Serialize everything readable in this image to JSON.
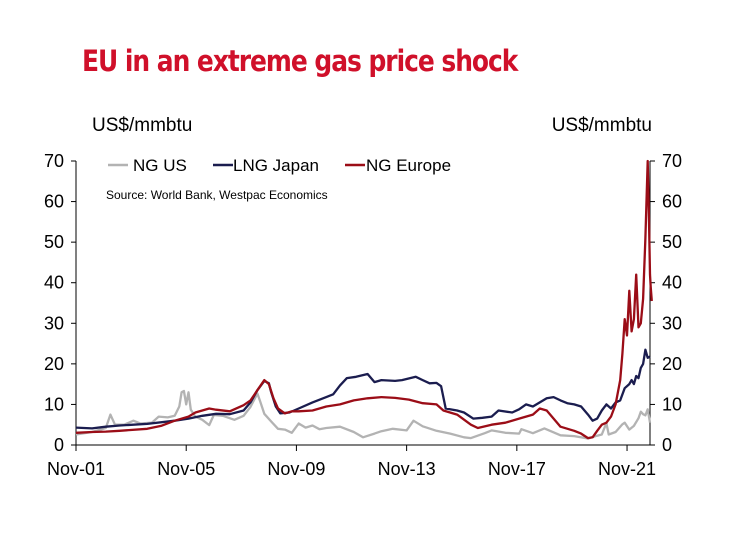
{
  "title": "EU in an extreme gas price shock",
  "chart_data": {
    "type": "line",
    "ylabel_left": "US$/mmbtu",
    "ylabel_right": "US$/mmbtu",
    "source": "Source: World Bank, Westpac Economics",
    "ylim": [
      0,
      70
    ],
    "yticks": [
      "0",
      "10",
      "20",
      "30",
      "40",
      "50",
      "60",
      "70"
    ],
    "xticks": [
      "Nov-01",
      "Nov-05",
      "Nov-09",
      "Nov-13",
      "Nov-17",
      "Nov-21"
    ],
    "xlim": [
      "2001-11",
      "2022-09"
    ],
    "grid": false,
    "legend_position": "top-left",
    "series": [
      {
        "name": "NG US",
        "color": "#b3b3b3",
        "points": [
          [
            "2001-11",
            2.6
          ],
          [
            "2002-06",
            3.2
          ],
          [
            "2002-12",
            4.2
          ],
          [
            "2003-02",
            7.5
          ],
          [
            "2003-04",
            5.0
          ],
          [
            "2003-08",
            5.0
          ],
          [
            "2003-12",
            6.0
          ],
          [
            "2004-03",
            5.3
          ],
          [
            "2004-08",
            5.5
          ],
          [
            "2004-11",
            7.0
          ],
          [
            "2005-03",
            6.8
          ],
          [
            "2005-06",
            7.2
          ],
          [
            "2005-08",
            9.5
          ],
          [
            "2005-09",
            13.0
          ],
          [
            "2005-10",
            13.3
          ],
          [
            "2005-11",
            10.0
          ],
          [
            "2005-12",
            13.0
          ],
          [
            "2006-01",
            8.7
          ],
          [
            "2006-03",
            7.0
          ],
          [
            "2006-06",
            6.2
          ],
          [
            "2006-09",
            4.9
          ],
          [
            "2006-11",
            7.4
          ],
          [
            "2007-03",
            7.2
          ],
          [
            "2007-08",
            6.2
          ],
          [
            "2007-12",
            7.2
          ],
          [
            "2008-03",
            9.4
          ],
          [
            "2008-06",
            12.7
          ],
          [
            "2008-07",
            11.1
          ],
          [
            "2008-09",
            7.7
          ],
          [
            "2008-12",
            5.8
          ],
          [
            "2009-03",
            4.0
          ],
          [
            "2009-06",
            3.8
          ],
          [
            "2009-09",
            3.0
          ],
          [
            "2009-12",
            5.3
          ],
          [
            "2010-03",
            4.3
          ],
          [
            "2010-06",
            4.8
          ],
          [
            "2010-09",
            3.9
          ],
          [
            "2010-12",
            4.2
          ],
          [
            "2011-06",
            4.5
          ],
          [
            "2011-12",
            3.2
          ],
          [
            "2012-04",
            1.9
          ],
          [
            "2012-09",
            2.8
          ],
          [
            "2012-12",
            3.4
          ],
          [
            "2013-05",
            4.0
          ],
          [
            "2013-11",
            3.6
          ],
          [
            "2014-02",
            6.0
          ],
          [
            "2014-06",
            4.6
          ],
          [
            "2014-12",
            3.5
          ],
          [
            "2015-06",
            2.8
          ],
          [
            "2015-12",
            1.9
          ],
          [
            "2016-03",
            1.7
          ],
          [
            "2016-09",
            2.9
          ],
          [
            "2016-12",
            3.6
          ],
          [
            "2017-06",
            3.0
          ],
          [
            "2017-12",
            2.8
          ],
          [
            "2018-01",
            3.9
          ],
          [
            "2018-06",
            2.9
          ],
          [
            "2018-11",
            4.1
          ],
          [
            "2019-06",
            2.4
          ],
          [
            "2019-12",
            2.2
          ],
          [
            "2020-06",
            1.6
          ],
          [
            "2020-10",
            2.3
          ],
          [
            "2020-12",
            2.6
          ],
          [
            "2021-02",
            5.4
          ],
          [
            "2021-03",
            2.6
          ],
          [
            "2021-06",
            3.2
          ],
          [
            "2021-09",
            5.1
          ],
          [
            "2021-10",
            5.5
          ],
          [
            "2021-12",
            3.8
          ],
          [
            "2022-02",
            4.7
          ],
          [
            "2022-04",
            6.6
          ],
          [
            "2022-05",
            8.2
          ],
          [
            "2022-06",
            7.6
          ],
          [
            "2022-07",
            7.3
          ],
          [
            "2022-08",
            8.8
          ],
          [
            "2022-09",
            5.5
          ]
        ]
      },
      {
        "name": "LNG Japan",
        "color": "#1b1d4f",
        "points": [
          [
            "2001-11",
            4.3
          ],
          [
            "2002-06",
            4.1
          ],
          [
            "2002-12",
            4.5
          ],
          [
            "2003-06",
            4.8
          ],
          [
            "2004-06",
            5.2
          ],
          [
            "2005-06",
            6.0
          ],
          [
            "2005-12",
            6.5
          ],
          [
            "2006-06",
            7.2
          ],
          [
            "2006-12",
            7.7
          ],
          [
            "2007-06",
            7.6
          ],
          [
            "2007-12",
            8.5
          ],
          [
            "2008-03",
            10.5
          ],
          [
            "2008-06",
            13.5
          ],
          [
            "2008-09",
            15.8
          ],
          [
            "2008-11",
            15.2
          ],
          [
            "2008-12",
            13.0
          ],
          [
            "2009-02",
            9.5
          ],
          [
            "2009-04",
            7.8
          ],
          [
            "2009-08",
            8.0
          ],
          [
            "2009-12",
            9.0
          ],
          [
            "2010-06",
            10.5
          ],
          [
            "2010-12",
            11.8
          ],
          [
            "2011-03",
            12.5
          ],
          [
            "2011-06",
            14.7
          ],
          [
            "2011-09",
            16.5
          ],
          [
            "2012-01",
            16.8
          ],
          [
            "2012-06",
            17.5
          ],
          [
            "2012-09",
            15.5
          ],
          [
            "2012-12",
            16.0
          ],
          [
            "2013-06",
            15.8
          ],
          [
            "2013-09",
            16.0
          ],
          [
            "2014-03",
            16.8
          ],
          [
            "2014-06",
            16.0
          ],
          [
            "2014-09",
            15.2
          ],
          [
            "2014-12",
            15.3
          ],
          [
            "2015-02",
            14.5
          ],
          [
            "2015-04",
            9.0
          ],
          [
            "2015-09",
            8.5
          ],
          [
            "2015-12",
            8.0
          ],
          [
            "2016-04",
            6.5
          ],
          [
            "2016-08",
            6.7
          ],
          [
            "2016-12",
            7.0
          ],
          [
            "2017-03",
            8.5
          ],
          [
            "2017-09",
            8.0
          ],
          [
            "2017-12",
            8.8
          ],
          [
            "2018-03",
            10.0
          ],
          [
            "2018-06",
            9.5
          ],
          [
            "2018-12",
            11.5
          ],
          [
            "2019-03",
            11.8
          ],
          [
            "2019-06",
            11.0
          ],
          [
            "2019-09",
            10.3
          ],
          [
            "2019-12",
            10.0
          ],
          [
            "2020-03",
            9.5
          ],
          [
            "2020-06",
            7.5
          ],
          [
            "2020-08",
            6.0
          ],
          [
            "2020-10",
            6.5
          ],
          [
            "2020-12",
            8.5
          ],
          [
            "2021-02",
            10.0
          ],
          [
            "2021-04",
            9.0
          ],
          [
            "2021-06",
            10.5
          ],
          [
            "2021-08",
            11.0
          ],
          [
            "2021-10",
            14.0
          ],
          [
            "2021-12",
            15.0
          ],
          [
            "2022-01",
            16.0
          ],
          [
            "2022-02",
            15.0
          ],
          [
            "2022-03",
            17.0
          ],
          [
            "2022-04",
            16.5
          ],
          [
            "2022-05",
            19.0
          ],
          [
            "2022-06",
            20.0
          ],
          [
            "2022-07",
            23.5
          ],
          [
            "2022-08",
            21.5
          ],
          [
            "2022-09",
            21.8
          ]
        ]
      },
      {
        "name": "NG Europe",
        "color": "#9b0d17",
        "points": [
          [
            "2001-11",
            3.0
          ],
          [
            "2002-06",
            3.2
          ],
          [
            "2002-12",
            3.3
          ],
          [
            "2003-06",
            3.5
          ],
          [
            "2004-06",
            4.0
          ],
          [
            "2004-12",
            4.7
          ],
          [
            "2005-06",
            6.0
          ],
          [
            "2005-12",
            7.0
          ],
          [
            "2006-03",
            8.0
          ],
          [
            "2006-06",
            8.5
          ],
          [
            "2006-09",
            9.0
          ],
          [
            "2006-12",
            8.7
          ],
          [
            "2007-06",
            8.3
          ],
          [
            "2007-12",
            9.8
          ],
          [
            "2008-03",
            11.0
          ],
          [
            "2008-06",
            13.5
          ],
          [
            "2008-09",
            16.0
          ],
          [
            "2008-11",
            15.0
          ],
          [
            "2009-01",
            11.5
          ],
          [
            "2009-03",
            9.0
          ],
          [
            "2009-06",
            7.8
          ],
          [
            "2009-09",
            8.3
          ],
          [
            "2009-12",
            8.3
          ],
          [
            "2010-06",
            8.5
          ],
          [
            "2010-12",
            9.5
          ],
          [
            "2011-06",
            10.0
          ],
          [
            "2011-12",
            11.0
          ],
          [
            "2012-06",
            11.5
          ],
          [
            "2012-12",
            11.8
          ],
          [
            "2013-06",
            11.6
          ],
          [
            "2013-12",
            11.2
          ],
          [
            "2014-06",
            10.3
          ],
          [
            "2014-12",
            10.0
          ],
          [
            "2015-03",
            8.5
          ],
          [
            "2015-09",
            7.5
          ],
          [
            "2016-03",
            5.0
          ],
          [
            "2016-06",
            4.2
          ],
          [
            "2016-12",
            5.0
          ],
          [
            "2017-06",
            5.5
          ],
          [
            "2017-12",
            6.5
          ],
          [
            "2018-06",
            7.5
          ],
          [
            "2018-09",
            9.0
          ],
          [
            "2018-12",
            8.5
          ],
          [
            "2019-03",
            6.5
          ],
          [
            "2019-06",
            4.5
          ],
          [
            "2019-12",
            3.5
          ],
          [
            "2020-03",
            2.8
          ],
          [
            "2020-06",
            1.7
          ],
          [
            "2020-08",
            1.9
          ],
          [
            "2020-10",
            3.5
          ],
          [
            "2020-12",
            5.0
          ],
          [
            "2021-02",
            5.5
          ],
          [
            "2021-04",
            7.0
          ],
          [
            "2021-06",
            10.0
          ],
          [
            "2021-08",
            16.0
          ],
          [
            "2021-09",
            22.5
          ],
          [
            "2021-10",
            31.0
          ],
          [
            "2021-11",
            27.0
          ],
          [
            "2021-12",
            38.0
          ],
          [
            "2022-01",
            28.0
          ],
          [
            "2022-02",
            31.0
          ],
          [
            "2022-03",
            42.0
          ],
          [
            "2022-04",
            29.0
          ],
          [
            "2022-05",
            30.0
          ],
          [
            "2022-06",
            36.0
          ],
          [
            "2022-07",
            51.0
          ],
          [
            "2022-08",
            70.0
          ],
          [
            "2022-08-15",
            58.0
          ],
          [
            "2022-09",
            42.0
          ],
          [
            "2022-09-10",
            39.0
          ],
          [
            "2022-09-25",
            35.5
          ]
        ]
      }
    ]
  }
}
